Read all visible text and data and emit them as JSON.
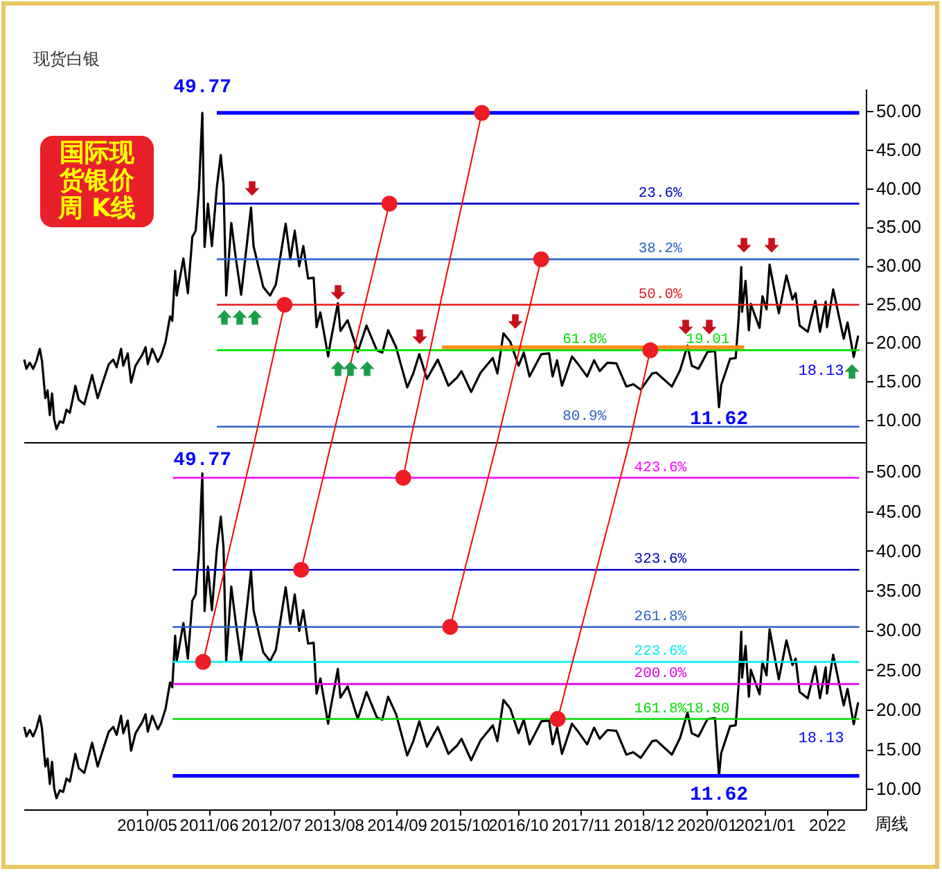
{
  "chart_data": [
    {
      "type": "line",
      "title": "现货白银",
      "annotations": [
        "国际现货银价周 K线",
        {
          "text": "49.77",
          "x": "2011-04-29",
          "y": 49.77
        },
        {
          "text": "19.01",
          "x": "2020-01-10",
          "y": 19.01
        },
        {
          "text": "18.13",
          "x": "2022-07-15",
          "y": 18.13
        },
        {
          "text": "11.62",
          "x": "2020-03-20",
          "y": 11.62
        }
      ],
      "xlim": [
        "2008-03-31",
        "2022-09-29"
      ],
      "ylim": [
        7.1,
        52.9
      ],
      "yticks": [
        {
          "value": 10,
          "label": "10.00"
        },
        {
          "value": 15,
          "label": "15.00"
        },
        {
          "value": 20,
          "label": "20.00"
        },
        {
          "value": 25,
          "label": "25.00"
        },
        {
          "value": 30,
          "label": "30.00"
        },
        {
          "value": 35,
          "label": "35.00"
        },
        {
          "value": 40,
          "label": "40.00"
        },
        {
          "value": 45,
          "label": "45.00"
        },
        {
          "value": 50,
          "label": "50.00"
        }
      ],
      "tick_labels": "y",
      "series": [
        {
          "color": "#000000",
          "x": [
            "2008-04-04",
            "2008-04-18",
            "2008-05-09",
            "2008-05-30",
            "2008-06-20",
            "2008-07-11",
            "2008-07-25",
            "2008-08-15",
            "2008-08-29",
            "2008-09-12",
            "2008-09-26",
            "2008-10-10",
            "2008-10-24",
            "2008-11-14",
            "2008-12-05",
            "2008-12-26",
            "2009-01-16",
            "2009-02-20",
            "2009-03-13",
            "2009-04-17",
            "2009-06-05",
            "2009-07-10",
            "2009-08-07",
            "2009-09-18",
            "2009-10-16",
            "2009-11-06",
            "2009-12-04",
            "2009-12-18",
            "2010-01-15",
            "2010-02-05",
            "2010-03-05",
            "2010-04-16",
            "2010-05-07",
            "2010-05-21",
            "2010-06-18",
            "2010-07-23",
            "2010-08-13",
            "2010-09-10",
            "2010-10-08",
            "2010-10-22",
            "2010-11-09",
            "2010-11-19",
            "2010-12-31",
            "2011-01-28",
            "2011-02-25",
            "2011-03-18",
            "2011-04-08",
            "2011-04-29",
            "2011-05-13",
            "2011-06-03",
            "2011-06-28",
            "2011-07-29",
            "2011-08-23",
            "2011-09-09",
            "2011-09-26",
            "2011-10-28",
            "2011-11-25",
            "2011-12-29",
            "2012-02-29",
            "2012-03-16",
            "2012-05-16",
            "2012-06-28",
            "2012-08-03",
            "2012-10-04",
            "2012-11-02",
            "2012-11-30",
            "2012-12-28",
            "2013-01-23",
            "2013-02-22",
            "2013-03-29",
            "2013-04-16",
            "2013-05-10",
            "2013-06-28",
            "2013-07-12",
            "2013-08-28",
            "2013-09-13",
            "2013-10-28",
            "2013-12-31",
            "2014-02-24",
            "2014-04-30",
            "2014-06-03",
            "2014-07-10",
            "2014-08-29",
            "2014-11-07",
            "2014-12-15",
            "2015-01-22",
            "2015-03-11",
            "2015-05-18",
            "2015-07-24",
            "2015-09-18",
            "2015-10-14",
            "2015-12-14",
            "2016-02-11",
            "2016-04-28",
            "2016-05-27",
            "2016-07-04",
            "2016-08-16",
            "2016-10-07",
            "2016-11-09",
            "2016-12-15",
            "2017-02-27",
            "2017-04-17",
            "2017-05-09",
            "2017-06-06",
            "2017-07-07",
            "2017-09-08",
            "2017-10-13",
            "2017-12-12",
            "2018-01-25",
            "2018-03-01",
            "2018-04-19",
            "2018-06-14",
            "2018-08-16",
            "2018-09-28",
            "2018-11-14",
            "2019-01-25",
            "2019-02-20",
            "2019-05-29",
            "2019-07-19",
            "2019-09-04",
            "2019-10-01",
            "2019-11-12",
            "2020-01-08",
            "2020-02-24",
            "2020-03-20",
            "2020-04-03",
            "2020-05-29",
            "2020-07-03",
            "2020-07-22",
            "2020-08-07",
            "2020-08-12",
            "2020-09-03",
            "2020-09-24",
            "2020-10-06",
            "2020-11-30",
            "2020-12-18",
            "2021-01-13",
            "2021-02-01",
            "2021-03-31",
            "2021-05-18",
            "2021-06-25",
            "2021-07-15",
            "2021-08-09",
            "2021-09-29",
            "2021-11-16",
            "2021-12-15",
            "2022-01-20",
            "2022-01-28",
            "2022-03-08",
            "2022-05-13",
            "2022-06-06",
            "2022-07-15",
            "2022-08-12"
          ],
          "values": [
            17.8,
            16.6,
            17.4,
            16.6,
            17.6,
            19.2,
            17.6,
            12.8,
            13.8,
            10.6,
            13.4,
            10.0,
            8.8,
            9.8,
            9.6,
            11.3,
            10.9,
            14.4,
            12.6,
            12.0,
            15.8,
            12.8,
            14.6,
            17.2,
            17.8,
            16.8,
            19.2,
            17.0,
            18.6,
            14.8,
            17.0,
            18.4,
            19.4,
            17.2,
            19.2,
            17.5,
            18.3,
            20.1,
            23.4,
            22.8,
            29.3,
            26.1,
            30.9,
            26.4,
            33.7,
            34.5,
            40.0,
            49.77,
            32.4,
            38.0,
            32.5,
            40.1,
            44.3,
            40.5,
            26.1,
            35.5,
            31.0,
            26.2,
            37.5,
            32.5,
            27.2,
            26.1,
            27.5,
            35.4,
            30.8,
            34.5,
            29.9,
            32.5,
            28.3,
            28.4,
            22.0,
            23.9,
            18.2,
            20.0,
            25.1,
            21.5,
            22.9,
            18.8,
            22.2,
            19.0,
            18.7,
            21.6,
            19.4,
            14.2,
            16.0,
            18.5,
            15.3,
            17.8,
            14.4,
            15.5,
            16.3,
            13.6,
            16.1,
            18.0,
            16.0,
            21.2,
            20.1,
            17.0,
            18.7,
            15.6,
            18.5,
            18.6,
            15.6,
            17.7,
            14.4,
            18.2,
            17.3,
            15.6,
            17.7,
            16.3,
            17.4,
            17.3,
            14.3,
            14.6,
            13.9,
            16.0,
            16.1,
            14.3,
            16.4,
            19.6,
            17.0,
            16.6,
            18.8,
            18.9,
            11.62,
            14.5,
            17.9,
            18.0,
            23.3,
            29.8,
            24.0,
            28.0,
            21.6,
            25.0,
            21.9,
            26.0,
            24.3,
            30.1,
            23.8,
            28.7,
            25.6,
            26.4,
            22.2,
            21.4,
            25.4,
            21.4,
            25.3,
            22.0,
            26.9,
            20.5,
            22.6,
            18.13,
            20.9
          ]
        },
        {
          "color": "#0000ff",
          "x": [
            "2011-07-29",
            "2022-08-19"
          ],
          "values": [
            49.77,
            49.77
          ]
        },
        {
          "color": "#ff8c1a",
          "x": [
            "2015-06-13",
            "2020-08-25"
          ],
          "values": [
            19.4,
            19.4
          ]
        },
        {
          "name": "23.6%",
          "color": "#0000cc",
          "x": [
            "2011-07-29",
            "2022-08-19"
          ],
          "values": [
            38.0,
            38.0
          ]
        },
        {
          "name": "38.2%",
          "color": "#2a62c8",
          "x": [
            "2011-07-29",
            "2022-08-19"
          ],
          "values": [
            30.8,
            30.8
          ]
        },
        {
          "name": "50.0%",
          "color": "#e31b1b",
          "x": [
            "2011-07-29",
            "2022-08-19"
          ],
          "values": [
            24.9,
            24.9
          ]
        },
        {
          "name": "61.8%",
          "color": "#00dd00",
          "x": [
            "2011-07-29",
            "2022-08-19"
          ],
          "values": [
            19.01,
            19.01
          ]
        },
        {
          "name": "80.9%",
          "color": "#2a62c8",
          "x": [
            "2011-07-29",
            "2022-08-19"
          ],
          "values": [
            9.1,
            9.1
          ]
        },
        {
          "color": "#ff0000",
          "x": [
            "2012-03-21",
            "2012-09-27"
          ],
          "values": [
            7.1,
            24.9
          ]
        },
        {
          "color": "#ff0000",
          "x": [
            "2013-07-19",
            "2014-07-18"
          ],
          "values": [
            7.1,
            38.0
          ]
        },
        {
          "color": "#ff0000",
          "x": [
            "2014-11-25",
            "2016-02-19"
          ],
          "values": [
            7.1,
            49.77
          ]
        },
        {
          "color": "#ff0000",
          "x": [
            "2016-05-25",
            "2017-02-26"
          ],
          "values": [
            7.1,
            30.8
          ]
        },
        {
          "color": "#ff0000",
          "x": [
            "2018-09-05",
            "2019-01-13"
          ],
          "values": [
            7.1,
            19.01
          ]
        },
        {
          "type": "scatter",
          "marker": "circle",
          "color": "#ee1c25",
          "x": [
            "2012-09-27",
            "2014-07-18",
            "2016-02-19",
            "2017-02-26",
            "2019-01-13"
          ],
          "values": [
            24.9,
            38.0,
            49.77,
            30.8,
            19.01
          ]
        }
      ]
    },
    {
      "type": "line",
      "xlabel": "周线",
      "annotations": [
        {
          "text": "49.77",
          "x": "2011-04-29",
          "y": 49.77
        },
        {
          "text": "18.80",
          "x": "2020-01-10",
          "y": 18.8
        },
        {
          "text": "18.13",
          "x": "2022-07-15",
          "y": 18.13
        },
        {
          "text": "11.62",
          "x": "2020-03-20",
          "y": 11.62
        }
      ],
      "xlim": [
        "2008-03-31",
        "2022-09-29"
      ],
      "ylim": [
        7.4,
        53.7
      ],
      "xticks": [
        {
          "value": "2010-05-13",
          "label": "2010/05"
        },
        {
          "value": "2011-06-07",
          "label": "2011/06"
        },
        {
          "value": "2012-07-02",
          "label": "2012/07"
        },
        {
          "value": "2013-08-01",
          "label": "2013/08"
        },
        {
          "value": "2014-09-01",
          "label": "2014/09"
        },
        {
          "value": "2015-10-01",
          "label": "2015/10"
        },
        {
          "value": "2016-10-02",
          "label": "2016/10"
        },
        {
          "value": "2017-11-01",
          "label": "2017/11"
        },
        {
          "value": "2018-12-01",
          "label": "2018/12"
        },
        {
          "value": "2020-01-01",
          "label": "2020/01"
        },
        {
          "value": "2021-01-02",
          "label": "2021/01"
        },
        {
          "value": "2022-01-27",
          "label": "2022"
        }
      ],
      "yticks": [
        {
          "value": 10,
          "label": "10.00"
        },
        {
          "value": 15,
          "label": "15.00"
        },
        {
          "value": 20,
          "label": "20.00"
        },
        {
          "value": 25,
          "label": "25.00"
        },
        {
          "value": 30,
          "label": "30.00"
        },
        {
          "value": 35,
          "label": "35.00"
        },
        {
          "value": 40,
          "label": "40.00"
        },
        {
          "value": 45,
          "label": "45.00"
        },
        {
          "value": 50,
          "label": "50.00"
        }
      ],
      "series": [
        {
          "color": "#000000",
          "x": [
            "2008-04-04",
            "2008-04-18",
            "2008-05-09",
            "2008-05-30",
            "2008-06-20",
            "2008-07-11",
            "2008-07-25",
            "2008-08-15",
            "2008-08-29",
            "2008-09-12",
            "2008-09-26",
            "2008-10-10",
            "2008-10-24",
            "2008-11-14",
            "2008-12-05",
            "2008-12-26",
            "2009-01-16",
            "2009-02-20",
            "2009-03-13",
            "2009-04-17",
            "2009-06-05",
            "2009-07-10",
            "2009-08-07",
            "2009-09-18",
            "2009-10-16",
            "2009-11-06",
            "2009-12-04",
            "2009-12-18",
            "2010-01-15",
            "2010-02-05",
            "2010-03-05",
            "2010-04-16",
            "2010-05-07",
            "2010-05-21",
            "2010-06-18",
            "2010-07-23",
            "2010-08-13",
            "2010-09-10",
            "2010-10-08",
            "2010-10-22",
            "2010-11-09",
            "2010-11-19",
            "2010-12-31",
            "2011-01-28",
            "2011-02-25",
            "2011-03-18",
            "2011-04-08",
            "2011-04-29",
            "2011-05-13",
            "2011-06-03",
            "2011-06-28",
            "2011-07-29",
            "2011-08-23",
            "2011-09-09",
            "2011-09-26",
            "2011-10-28",
            "2011-11-25",
            "2011-12-29",
            "2012-02-29",
            "2012-03-16",
            "2012-05-16",
            "2012-06-28",
            "2012-08-03",
            "2012-10-04",
            "2012-11-02",
            "2012-11-30",
            "2012-12-28",
            "2013-01-23",
            "2013-02-22",
            "2013-03-29",
            "2013-04-16",
            "2013-05-10",
            "2013-06-28",
            "2013-07-12",
            "2013-08-28",
            "2013-09-13",
            "2013-10-28",
            "2013-12-31",
            "2014-02-24",
            "2014-04-30",
            "2014-06-03",
            "2014-07-10",
            "2014-08-29",
            "2014-11-07",
            "2014-12-15",
            "2015-01-22",
            "2015-03-11",
            "2015-05-18",
            "2015-07-24",
            "2015-09-18",
            "2015-10-14",
            "2015-12-14",
            "2016-02-11",
            "2016-04-28",
            "2016-05-27",
            "2016-07-04",
            "2016-08-16",
            "2016-10-07",
            "2016-11-09",
            "2016-12-15",
            "2017-02-27",
            "2017-04-17",
            "2017-05-09",
            "2017-06-06",
            "2017-07-07",
            "2017-09-08",
            "2017-10-13",
            "2017-12-12",
            "2018-01-25",
            "2018-03-01",
            "2018-04-19",
            "2018-06-14",
            "2018-08-16",
            "2018-09-28",
            "2018-11-14",
            "2019-01-25",
            "2019-02-20",
            "2019-05-29",
            "2019-07-19",
            "2019-09-04",
            "2019-10-01",
            "2019-11-12",
            "2020-01-08",
            "2020-02-24",
            "2020-03-20",
            "2020-04-03",
            "2020-05-29",
            "2020-07-03",
            "2020-07-22",
            "2020-08-07",
            "2020-08-12",
            "2020-09-03",
            "2020-09-24",
            "2020-10-06",
            "2020-11-30",
            "2020-12-18",
            "2021-01-13",
            "2021-02-01",
            "2021-03-31",
            "2021-05-18",
            "2021-06-25",
            "2021-07-15",
            "2021-08-09",
            "2021-09-29",
            "2021-11-16",
            "2021-12-15",
            "2022-01-20",
            "2022-01-28",
            "2022-03-08",
            "2022-05-13",
            "2022-06-06",
            "2022-07-15",
            "2022-08-12"
          ],
          "values": [
            17.8,
            16.6,
            17.4,
            16.6,
            17.6,
            19.2,
            17.6,
            12.8,
            13.8,
            10.6,
            13.4,
            10.0,
            8.8,
            9.8,
            9.6,
            11.3,
            10.9,
            14.4,
            12.6,
            12.0,
            15.8,
            12.8,
            14.6,
            17.2,
            17.8,
            16.8,
            19.2,
            17.0,
            18.6,
            14.8,
            17.0,
            18.4,
            19.4,
            17.2,
            19.2,
            17.5,
            18.3,
            20.1,
            23.4,
            22.8,
            29.3,
            26.1,
            30.9,
            26.4,
            33.7,
            34.5,
            40.0,
            49.77,
            32.4,
            38.0,
            32.5,
            40.1,
            44.3,
            40.5,
            26.1,
            35.5,
            31.0,
            26.2,
            37.5,
            32.5,
            27.2,
            26.1,
            27.5,
            35.4,
            30.8,
            34.5,
            29.9,
            32.5,
            28.3,
            28.4,
            22.0,
            23.9,
            18.2,
            20.0,
            25.1,
            21.5,
            22.9,
            18.8,
            22.2,
            19.0,
            18.7,
            21.6,
            19.4,
            14.2,
            16.0,
            18.5,
            15.3,
            17.8,
            14.4,
            15.5,
            16.3,
            13.6,
            16.1,
            18.0,
            16.0,
            21.2,
            20.1,
            17.0,
            18.7,
            15.6,
            18.5,
            18.6,
            15.6,
            17.7,
            14.4,
            18.2,
            17.3,
            15.6,
            17.7,
            16.3,
            17.4,
            17.3,
            14.3,
            14.6,
            13.9,
            16.0,
            16.1,
            14.3,
            16.4,
            19.6,
            17.0,
            16.6,
            18.8,
            18.9,
            11.62,
            14.5,
            17.9,
            18.0,
            23.3,
            29.8,
            24.0,
            28.0,
            21.6,
            25.0,
            21.9,
            26.0,
            24.3,
            30.1,
            23.8,
            28.7,
            25.6,
            26.4,
            22.2,
            21.4,
            25.4,
            21.4,
            25.3,
            22.0,
            26.9,
            20.5,
            22.6,
            18.13,
            20.9
          ]
        },
        {
          "color": "#0000ff",
          "x": [
            "2010-10-25",
            "2022-08-19"
          ],
          "values": [
            11.62,
            11.62
          ]
        },
        {
          "name": "423.6%",
          "color": "#ff00ff",
          "x": [
            "2010-10-25",
            "2022-08-19"
          ],
          "values": [
            49.2,
            49.2
          ]
        },
        {
          "name": "323.6%",
          "color": "#0000cc",
          "x": [
            "2010-10-25",
            "2022-08-19"
          ],
          "values": [
            37.6,
            37.6
          ]
        },
        {
          "name": "261.8%",
          "color": "#2a62c8",
          "x": [
            "2010-10-25",
            "2022-08-19"
          ],
          "values": [
            30.4,
            30.4
          ]
        },
        {
          "name": "223.6%",
          "color": "#00eeee",
          "x": [
            "2010-10-25",
            "2022-08-19"
          ],
          "values": [
            26.0,
            26.0
          ]
        },
        {
          "name": "200.0%",
          "color": "#e000e0",
          "x": [
            "2010-10-25",
            "2022-08-19"
          ],
          "values": [
            23.2,
            23.2
          ]
        },
        {
          "name": "161.8%",
          "color": "#00dd00",
          "x": [
            "2010-10-25",
            "2022-08-19"
          ],
          "values": [
            18.8,
            18.8
          ]
        },
        {
          "color": "#ff0000",
          "x": [
            "2011-05-04",
            "2012-03-21"
          ],
          "values": [
            26.0,
            53.7
          ]
        },
        {
          "color": "#ff0000",
          "x": [
            "2013-01-09",
            "2013-07-19"
          ],
          "values": [
            37.6,
            53.7
          ]
        },
        {
          "color": "#ff0000",
          "x": [
            "2014-10-13",
            "2014-11-25"
          ],
          "values": [
            49.2,
            53.7
          ]
        },
        {
          "color": "#ff0000",
          "x": [
            "2015-08-04",
            "2016-05-25"
          ],
          "values": [
            30.4,
            53.7
          ]
        },
        {
          "color": "#ff0000",
          "x": [
            "2017-06-10",
            "2018-09-05"
          ],
          "values": [
            18.8,
            53.7
          ]
        },
        {
          "type": "scatter",
          "marker": "circle",
          "color": "#ee1c25",
          "x": [
            "2011-05-04",
            "2013-01-09",
            "2014-10-13",
            "2015-08-04",
            "2017-06-10"
          ],
          "values": [
            26.0,
            37.6,
            49.2,
            30.4,
            18.8
          ]
        }
      ]
    }
  ]
}
